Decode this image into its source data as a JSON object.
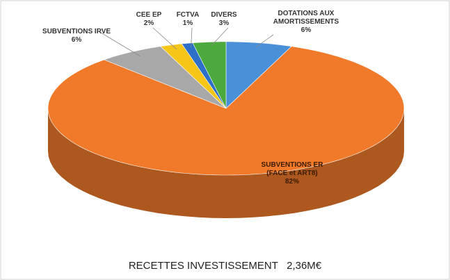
{
  "chart_data": {
    "type": "pie3d",
    "title": "RECETTES INVESTISSEMENT   2,36M€",
    "categories": [
      "DOTATIONS AUX AMORTISSEMENTS",
      "SUBVENTIONS ER (FACE et ART8)",
      "SUBVENTIONS IRVE",
      "CEE EP",
      "FCTVA",
      "DIVERS"
    ],
    "values": [
      6,
      82,
      6,
      2,
      1,
      3
    ],
    "value_labels": [
      "6%",
      "82%",
      "6%",
      "2%",
      "1%",
      "3%"
    ],
    "colors": [
      "#4a90d9",
      "#f07a2a",
      "#a8a8a8",
      "#f5c518",
      "#2e6fc7",
      "#4caa3c"
    ]
  }
}
